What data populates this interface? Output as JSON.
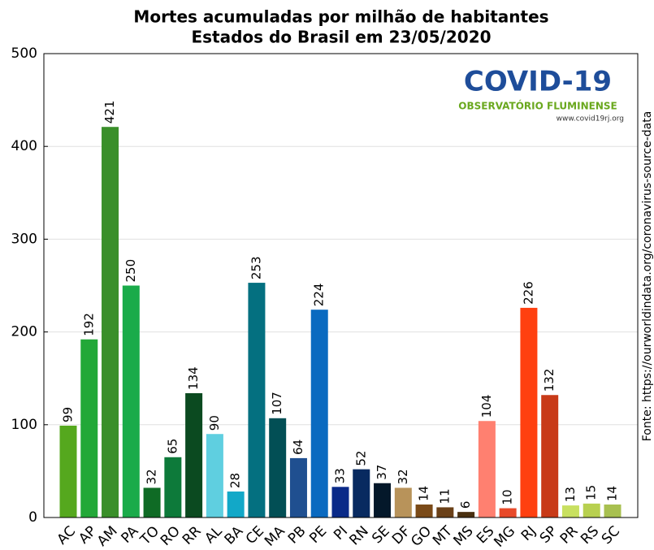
{
  "chart_data": {
    "type": "bar",
    "title": "Mortes acumuladas por milhão de habitantes",
    "subtitle": "Estados do Brasil em 23/05/2020",
    "categories": [
      "AC",
      "AP",
      "AM",
      "PA",
      "TO",
      "RO",
      "RR",
      "AL",
      "BA",
      "CE",
      "MA",
      "PB",
      "PE",
      "PI",
      "RN",
      "SE",
      "DF",
      "GO",
      "MT",
      "MS",
      "ES",
      "MG",
      "RJ",
      "SP",
      "PR",
      "RS",
      "SC"
    ],
    "values": [
      99,
      192,
      421,
      250,
      32,
      65,
      134,
      90,
      28,
      253,
      107,
      64,
      224,
      33,
      52,
      37,
      32,
      14,
      11,
      6,
      104,
      10,
      226,
      132,
      13,
      15,
      14
    ],
    "colors": [
      "#55a81e",
      "#22a838",
      "#3a8f2a",
      "#1aab4a",
      "#0f6b25",
      "#0d7a3a",
      "#0b4a20",
      "#5fcfe0",
      "#12a8c8",
      "#047080",
      "#024f55",
      "#1f4f90",
      "#0a6ac0",
      "#0a2a88",
      "#082a60",
      "#04182a",
      "#b8935a",
      "#7a4a18",
      "#6a4018",
      "#4a3010",
      "#ff8070",
      "#e84a2a",
      "#ff4010",
      "#c83a18",
      "#c8e060",
      "#b8d050",
      "#a8c050"
    ],
    "ylim": [
      0,
      500
    ],
    "yticks": [
      0,
      100,
      200,
      300,
      400,
      500
    ],
    "grid": true,
    "logo": {
      "title": "COVID-19",
      "subtitle": "OBSERVATÓRIO FLUMINENSE",
      "url": "www.covid19rj.org"
    },
    "source": "Fonte: https://ourworldindata.org/coronavirus-source-data"
  }
}
